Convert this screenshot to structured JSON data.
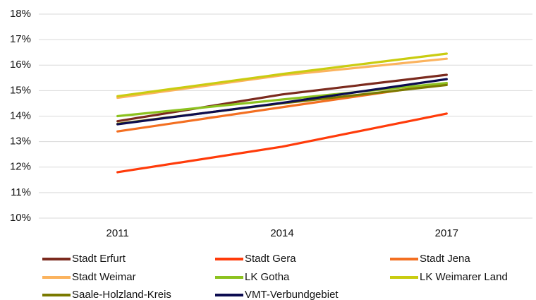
{
  "chart_data": {
    "type": "line",
    "categories": [
      "2011",
      "2014",
      "2017"
    ],
    "series": [
      {
        "name": "Stadt Erfurt",
        "color": "#7b2a1e",
        "values": [
          13.8,
          14.85,
          15.62
        ]
      },
      {
        "name": "Stadt Gera",
        "color": "#ff3b0a",
        "values": [
          11.8,
          12.8,
          14.1
        ]
      },
      {
        "name": "Stadt Jena",
        "color": "#f36f21",
        "values": [
          13.4,
          14.35,
          15.28
        ]
      },
      {
        "name": "Stadt Weimar",
        "color": "#fbb35e",
        "values": [
          14.72,
          15.6,
          16.25
        ]
      },
      {
        "name": "LK Gotha",
        "color": "#8cc21f",
        "values": [
          14.0,
          14.65,
          15.3
        ]
      },
      {
        "name": "LK Weimarer Land",
        "color": "#c9cc10",
        "values": [
          14.78,
          15.65,
          16.45
        ]
      },
      {
        "name": "Saale-Holzland-Kreis",
        "color": "#7a7a00",
        "values": [
          13.7,
          14.5,
          15.22
        ]
      },
      {
        "name": "VMT-Verbundgebiet",
        "color": "#0c0c50",
        "values": [
          13.68,
          14.52,
          15.45
        ]
      }
    ],
    "ylim": [
      10,
      18
    ],
    "yticks": [
      {
        "value": 10,
        "label": "10%"
      },
      {
        "value": 11,
        "label": "11%"
      },
      {
        "value": 12,
        "label": "12%"
      },
      {
        "value": 13,
        "label": "13%"
      },
      {
        "value": 14,
        "label": "14%"
      },
      {
        "value": 15,
        "label": "15%"
      },
      {
        "value": 16,
        "label": "16%"
      },
      {
        "value": 17,
        "label": "17%"
      },
      {
        "value": 18,
        "label": "18%"
      }
    ],
    "grid": true,
    "legend": "bottom"
  }
}
